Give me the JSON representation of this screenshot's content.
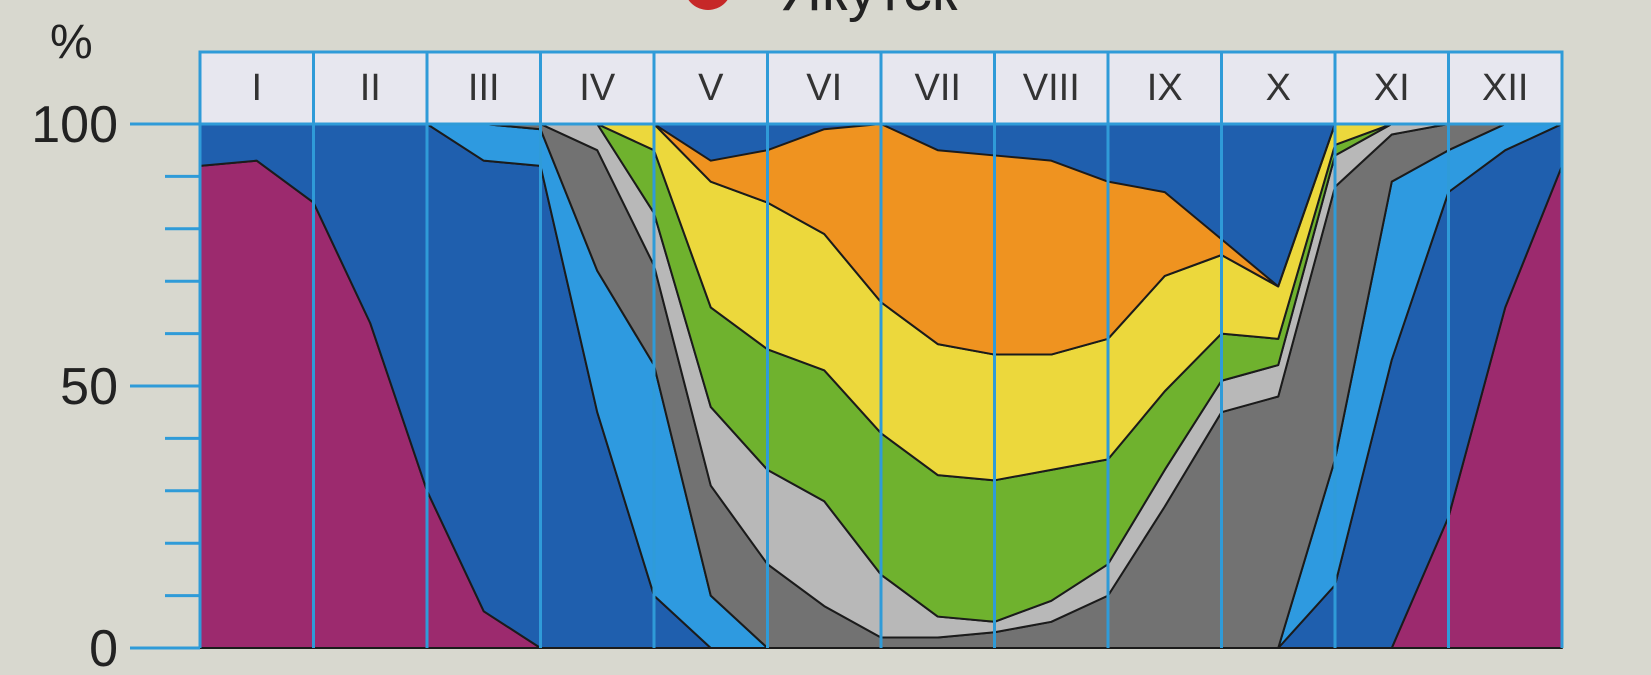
{
  "header": {
    "title_fragment": "Якутск",
    "marker_color": "#c62828"
  },
  "chart_data": {
    "type": "area",
    "title": "Якутск",
    "ylabel": "%",
    "ylim": [
      0,
      100
    ],
    "yticks": [
      0,
      50,
      100
    ],
    "minor_ytick_step": 10,
    "categories": [
      "I",
      "II",
      "III",
      "IV",
      "V",
      "VI",
      "VII",
      "VIII",
      "IX",
      "X",
      "XI",
      "XII"
    ],
    "x": [
      0.0,
      0.5,
      1.0,
      1.5,
      2.0,
      2.5,
      3.0,
      3.5,
      4.0,
      4.5,
      5.0,
      5.5,
      6.0,
      6.5,
      7.0,
      7.5,
      8.0,
      8.5,
      9.0,
      9.5,
      10.0,
      10.5,
      11.0,
      11.5,
      12.0
    ],
    "series": [
      {
        "color": "#9c2a6e",
        "values": [
          92,
          93,
          85,
          62,
          30,
          7,
          0,
          0,
          0,
          0,
          0,
          0,
          0,
          0,
          0,
          0,
          0,
          0,
          0,
          0,
          0,
          0,
          25,
          65,
          92
        ]
      },
      {
        "color": "#1f5fae",
        "values": [
          8,
          7,
          15,
          38,
          70,
          86,
          92,
          45,
          10,
          0,
          0,
          0,
          0,
          0,
          0,
          0,
          0,
          0,
          0,
          0,
          12,
          55,
          62,
          30,
          8
        ]
      },
      {
        "color": "#2e9ae0",
        "values": [
          0,
          0,
          0,
          0,
          0,
          7,
          7,
          27,
          44,
          10,
          0,
          0,
          0,
          0,
          0,
          0,
          0,
          0,
          0,
          0,
          24,
          34,
          8,
          5,
          0
        ]
      },
      {
        "color": "#727272",
        "values": [
          0,
          0,
          0,
          0,
          0,
          0,
          1,
          23,
          19,
          21,
          16,
          8,
          2,
          2,
          3,
          5,
          10,
          27,
          45,
          48,
          52,
          9,
          5,
          0,
          0
        ]
      },
      {
        "color": "#b8b8b8",
        "values": [
          0,
          0,
          0,
          0,
          0,
          0,
          0,
          5,
          10,
          15,
          18,
          20,
          12,
          4,
          2,
          4,
          6,
          7,
          6,
          6,
          6,
          2,
          0,
          0,
          0
        ]
      },
      {
        "color": "#6fb22e",
        "values": [
          0,
          0,
          0,
          0,
          0,
          0,
          0,
          5,
          12,
          19,
          23,
          25,
          27,
          27,
          27,
          25,
          20,
          15,
          9,
          5,
          2,
          0,
          0,
          0,
          0
        ]
      },
      {
        "color": "#ecd83c",
        "values": [
          0,
          0,
          0,
          0,
          0,
          0,
          0,
          3,
          12,
          24,
          28,
          26,
          25,
          25,
          24,
          22,
          23,
          22,
          15,
          10,
          4,
          0,
          0,
          0,
          0
        ]
      },
      {
        "color": "#ef9320",
        "values": [
          0,
          0,
          0,
          0,
          0,
          0,
          0,
          0,
          0,
          4,
          10,
          20,
          34,
          37,
          38,
          37,
          30,
          16,
          3,
          0,
          0,
          0,
          0,
          0,
          0
        ]
      }
    ],
    "grid": "vertical month dividers",
    "legend": "none"
  }
}
